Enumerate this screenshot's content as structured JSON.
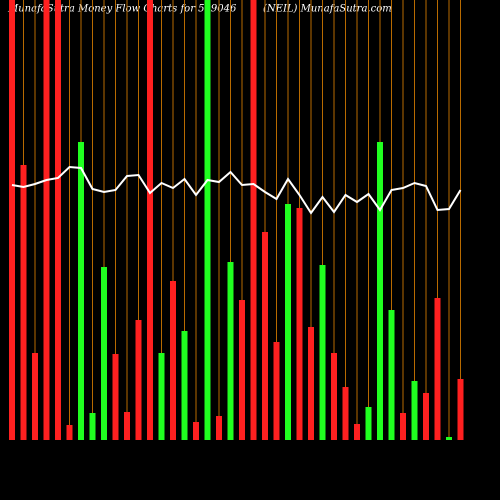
{
  "chart_data": {
    "type": "bar",
    "title": "MunafaSutra  Money Flow  Charts for 539046",
    "subtitle": "(NEIL) MunafaSutra.com",
    "ylim": [
      0,
      440
    ],
    "grid": true,
    "grid_color": "#b86a00",
    "line_color": "#ffffff",
    "values": [
      440,
      275,
      87,
      440,
      440,
      15,
      298,
      27,
      173,
      86,
      28,
      120,
      440,
      87,
      159,
      109,
      18,
      440,
      24,
      178,
      140,
      440,
      208,
      98,
      236,
      232,
      113,
      175,
      87,
      53,
      16,
      33,
      298,
      130,
      27,
      59,
      47,
      142,
      3,
      61
    ],
    "colors": [
      "#ff2020",
      "#ff2020",
      "#ff2020",
      "#ff2020",
      "#ff2020",
      "#ff2020",
      "#20ff20",
      "#20ff20",
      "#20ff20",
      "#ff2020",
      "#ff2020",
      "#ff2020",
      "#ff2020",
      "#20ff20",
      "#ff2020",
      "#20ff20",
      "#ff2020",
      "#20ff20",
      "#ff2020",
      "#20ff20",
      "#ff2020",
      "#ff2020",
      "#ff2020",
      "#ff2020",
      "#20ff20",
      "#ff2020",
      "#ff2020",
      "#20ff20",
      "#ff2020",
      "#ff2020",
      "#ff2020",
      "#20ff20",
      "#20ff20",
      "#20ff20",
      "#ff2020",
      "#20ff20",
      "#ff2020",
      "#ff2020",
      "#20ff20",
      "#ff2020"
    ],
    "line_values": [
      255,
      253,
      256,
      260,
      262,
      273,
      272,
      251,
      248,
      250,
      264,
      265,
      247,
      257,
      252,
      261,
      245,
      260,
      258,
      268,
      255,
      256,
      248,
      241,
      261,
      245,
      227,
      243,
      228,
      245,
      238,
      246,
      230,
      250,
      252,
      257,
      254,
      230,
      231,
      250
    ]
  }
}
